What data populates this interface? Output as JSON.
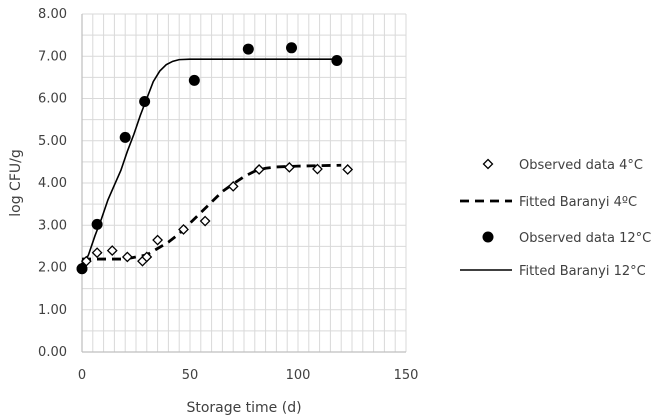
{
  "chart_data": {
    "type": "scatter",
    "title": "",
    "xlabel": "Storage time (d)",
    "ylabel": "log CFU/g",
    "xlim": [
      0,
      150
    ],
    "ylim": [
      0,
      8
    ],
    "xticks": [
      0,
      50,
      100,
      150
    ],
    "yticks": [
      "0.00",
      "1.00",
      "2.00",
      "3.00",
      "4.00",
      "5.00",
      "6.00",
      "7.00",
      "8.00"
    ],
    "grid": true,
    "legend_position": "right",
    "series": [
      {
        "name": "Observed data 4°C",
        "kind": "markers",
        "marker": "open-diamond",
        "color": "#000000",
        "x": [
          0,
          2,
          7,
          14,
          21,
          28,
          30,
          35,
          47,
          57,
          70,
          82,
          96,
          109,
          123
        ],
        "y": [
          2.0,
          2.15,
          2.35,
          2.4,
          2.25,
          2.15,
          2.25,
          2.65,
          2.9,
          3.1,
          3.92,
          4.32,
          4.37,
          4.33,
          4.32
        ]
      },
      {
        "name": "Fitted Baranyi 4ºC",
        "kind": "line",
        "dash": "dashed",
        "color": "#000000",
        "x": [
          0,
          5,
          10,
          15,
          20,
          25,
          30,
          35,
          40,
          45,
          50,
          55,
          60,
          65,
          70,
          75,
          80,
          85,
          90,
          95,
          100,
          110,
          120
        ],
        "y": [
          2.2,
          2.2,
          2.2,
          2.2,
          2.2,
          2.25,
          2.3,
          2.45,
          2.6,
          2.8,
          3.05,
          3.3,
          3.55,
          3.8,
          3.98,
          4.15,
          4.28,
          4.35,
          4.38,
          4.39,
          4.4,
          4.41,
          4.42
        ]
      },
      {
        "name": "Observed data 12°C",
        "kind": "markers",
        "marker": "filled-circle",
        "color": "#000000",
        "x": [
          0,
          7,
          20,
          29,
          52,
          77,
          97,
          118
        ],
        "y": [
          1.97,
          3.02,
          5.08,
          5.93,
          6.43,
          7.17,
          7.2,
          6.9
        ]
      },
      {
        "name": "Fitted Baranyi 12°C",
        "kind": "line",
        "dash": "solid",
        "color": "#000000",
        "x": [
          0,
          3,
          6,
          9,
          12,
          15,
          18,
          21,
          24,
          27,
          30,
          33,
          36,
          39,
          42,
          45,
          50,
          60,
          80,
          100,
          118
        ],
        "y": [
          2.0,
          2.3,
          2.75,
          3.15,
          3.6,
          3.95,
          4.3,
          4.75,
          5.15,
          5.6,
          6.0,
          6.4,
          6.65,
          6.8,
          6.88,
          6.92,
          6.93,
          6.93,
          6.93,
          6.93,
          6.93
        ]
      }
    ]
  }
}
